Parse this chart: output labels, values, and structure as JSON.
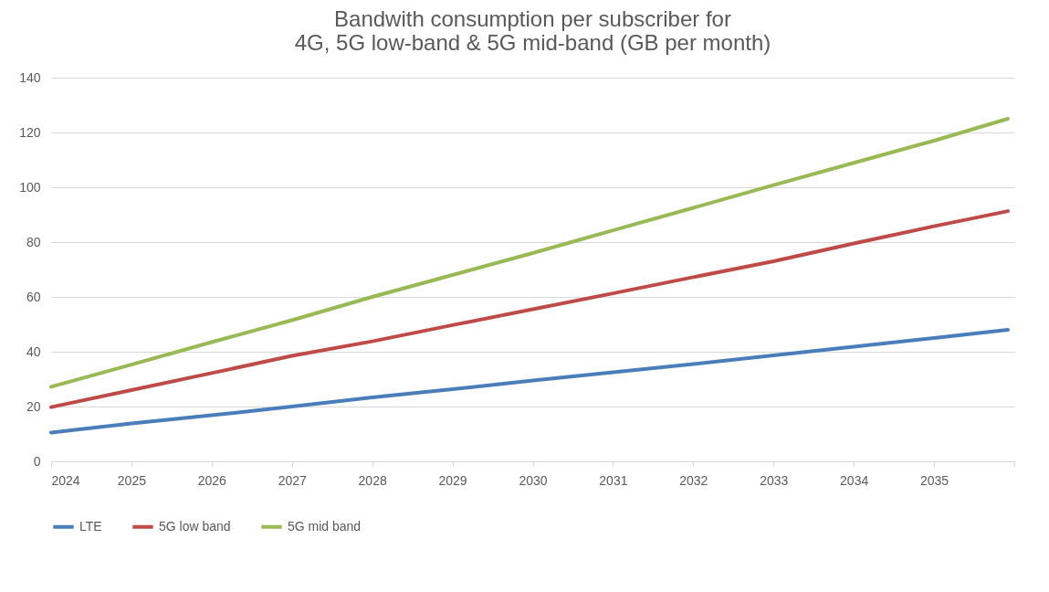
{
  "chart_data": {
    "type": "line",
    "title": [
      "Bandwith consumption per subscriber for",
      "4G, 5G low-band & 5G mid-band (GB per month)"
    ],
    "x": [
      2024,
      2025,
      2026,
      2027,
      2028,
      2029,
      2030,
      2031,
      2032,
      2033,
      2034,
      2035,
      2035.92
    ],
    "series": [
      {
        "name": "LTE",
        "color": "#4a7ebb",
        "values": [
          10.5,
          13.8,
          16.8,
          20,
          23.3,
          26.3,
          29.5,
          32.5,
          35.5,
          38.7,
          41.8,
          45,
          48
        ]
      },
      {
        "name": "5G low band",
        "color": "#be4b48",
        "values": [
          19.8,
          26,
          32.2,
          38.5,
          43.8,
          49.7,
          55.5,
          61.3,
          67.2,
          73,
          79.5,
          85.8,
          91.3
        ]
      },
      {
        "name": "5G mid band",
        "color": "#98b954",
        "values": [
          27.2,
          35.3,
          43.5,
          51.5,
          60,
          68,
          76,
          84.3,
          92.5,
          100.8,
          108.9,
          117,
          125
        ]
      }
    ],
    "xlim": [
      2024,
      2036
    ],
    "xticks": [
      2024,
      2025,
      2026,
      2027,
      2028,
      2029,
      2030,
      2031,
      2032,
      2033,
      2034,
      2035,
      {
        "value": 2036,
        "label": null
      }
    ],
    "ylim": [
      0,
      140
    ],
    "yticks": [
      0,
      20,
      40,
      60,
      80,
      100,
      120,
      140
    ],
    "grid": "y",
    "legend": "bottom",
    "marker": "none",
    "line_style": "solid"
  }
}
